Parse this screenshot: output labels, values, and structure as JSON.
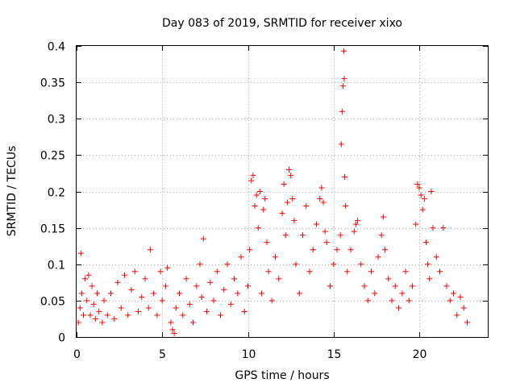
{
  "chart_data": {
    "type": "scatter",
    "title": "Day 083 of 2019, SRMTID for receiver xixo",
    "xlabel": "GPS time / hours",
    "ylabel": "SRMTID / TECUs",
    "xlim": [
      0,
      24
    ],
    "ylim": [
      0,
      0.4
    ],
    "x_ticks": [
      0,
      5,
      10,
      15,
      20
    ],
    "x_tick_labels": [
      "0",
      "5",
      "10",
      "15",
      "20"
    ],
    "y_ticks": [
      0,
      0.05,
      0.1,
      0.15,
      0.2,
      0.25,
      0.3,
      0.35,
      0.4
    ],
    "y_tick_labels": [
      "0",
      "0.05",
      "0.1",
      "0.15",
      "0.2",
      "0.25",
      "0.3",
      "0.35",
      "0.4"
    ],
    "grid": true,
    "marker": "+",
    "series": [
      {
        "name": "SRMTID",
        "color": "#ff0000",
        "points": [
          [
            0.1,
            0.02
          ],
          [
            0.2,
            0.04
          ],
          [
            0.25,
            0.115
          ],
          [
            0.3,
            0.06
          ],
          [
            0.4,
            0.03
          ],
          [
            0.5,
            0.08
          ],
          [
            0.6,
            0.05
          ],
          [
            0.7,
            0.085
          ],
          [
            0.8,
            0.03
          ],
          [
            0.9,
            0.07
          ],
          [
            1.0,
            0.045
          ],
          [
            1.1,
            0.025
          ],
          [
            1.2,
            0.06
          ],
          [
            1.3,
            0.035
          ],
          [
            1.5,
            0.02
          ],
          [
            1.6,
            0.05
          ],
          [
            1.8,
            0.03
          ],
          [
            2.0,
            0.06
          ],
          [
            2.2,
            0.025
          ],
          [
            2.4,
            0.075
          ],
          [
            2.6,
            0.04
          ],
          [
            2.8,
            0.085
          ],
          [
            3.0,
            0.03
          ],
          [
            3.2,
            0.065
          ],
          [
            3.4,
            0.09
          ],
          [
            3.6,
            0.035
          ],
          [
            3.8,
            0.055
          ],
          [
            4.0,
            0.08
          ],
          [
            4.2,
            0.04
          ],
          [
            4.3,
            0.12
          ],
          [
            4.5,
            0.06
          ],
          [
            4.7,
            0.03
          ],
          [
            4.9,
            0.09
          ],
          [
            5.0,
            0.05
          ],
          [
            5.2,
            0.07
          ],
          [
            5.3,
            0.095
          ],
          [
            5.5,
            0.02
          ],
          [
            5.6,
            0.01
          ],
          [
            5.7,
            0.005
          ],
          [
            5.8,
            0.04
          ],
          [
            6.0,
            0.06
          ],
          [
            6.2,
            0.03
          ],
          [
            6.4,
            0.08
          ],
          [
            6.6,
            0.045
          ],
          [
            6.8,
            0.02
          ],
          [
            7.0,
            0.07
          ],
          [
            7.2,
            0.1
          ],
          [
            7.3,
            0.055
          ],
          [
            7.4,
            0.135
          ],
          [
            7.6,
            0.035
          ],
          [
            7.8,
            0.075
          ],
          [
            8.0,
            0.05
          ],
          [
            8.2,
            0.09
          ],
          [
            8.4,
            0.03
          ],
          [
            8.6,
            0.065
          ],
          [
            8.8,
            0.1
          ],
          [
            9.0,
            0.045
          ],
          [
            9.2,
            0.08
          ],
          [
            9.4,
            0.06
          ],
          [
            9.6,
            0.11
          ],
          [
            9.8,
            0.035
          ],
          [
            10.0,
            0.07
          ],
          [
            10.1,
            0.12
          ],
          [
            10.2,
            0.215
          ],
          [
            10.3,
            0.222
          ],
          [
            10.4,
            0.18
          ],
          [
            10.5,
            0.195
          ],
          [
            10.6,
            0.15
          ],
          [
            10.7,
            0.2
          ],
          [
            10.8,
            0.06
          ],
          [
            10.9,
            0.175
          ],
          [
            11.0,
            0.19
          ],
          [
            11.1,
            0.13
          ],
          [
            11.2,
            0.09
          ],
          [
            11.4,
            0.05
          ],
          [
            11.6,
            0.11
          ],
          [
            11.8,
            0.08
          ],
          [
            12.0,
            0.17
          ],
          [
            12.1,
            0.21
          ],
          [
            12.2,
            0.14
          ],
          [
            12.3,
            0.185
          ],
          [
            12.4,
            0.23
          ],
          [
            12.5,
            0.222
          ],
          [
            12.6,
            0.19
          ],
          [
            12.7,
            0.16
          ],
          [
            12.8,
            0.1
          ],
          [
            13.0,
            0.06
          ],
          [
            13.2,
            0.14
          ],
          [
            13.4,
            0.18
          ],
          [
            13.6,
            0.09
          ],
          [
            13.8,
            0.12
          ],
          [
            14.0,
            0.155
          ],
          [
            14.2,
            0.19
          ],
          [
            14.3,
            0.205
          ],
          [
            14.4,
            0.185
          ],
          [
            14.5,
            0.145
          ],
          [
            14.6,
            0.13
          ],
          [
            14.8,
            0.07
          ],
          [
            15.0,
            0.1
          ],
          [
            15.2,
            0.12
          ],
          [
            15.4,
            0.14
          ],
          [
            15.45,
            0.265
          ],
          [
            15.5,
            0.31
          ],
          [
            15.55,
            0.345
          ],
          [
            15.6,
            0.393
          ],
          [
            15.62,
            0.355
          ],
          [
            15.65,
            0.22
          ],
          [
            15.7,
            0.18
          ],
          [
            15.8,
            0.09
          ],
          [
            16.0,
            0.12
          ],
          [
            16.2,
            0.145
          ],
          [
            16.3,
            0.155
          ],
          [
            16.4,
            0.16
          ],
          [
            16.6,
            0.1
          ],
          [
            16.8,
            0.07
          ],
          [
            17.0,
            0.05
          ],
          [
            17.2,
            0.09
          ],
          [
            17.4,
            0.06
          ],
          [
            17.6,
            0.11
          ],
          [
            17.8,
            0.14
          ],
          [
            17.9,
            0.165
          ],
          [
            18.0,
            0.12
          ],
          [
            18.2,
            0.08
          ],
          [
            18.4,
            0.05
          ],
          [
            18.6,
            0.07
          ],
          [
            18.8,
            0.04
          ],
          [
            19.0,
            0.06
          ],
          [
            19.2,
            0.09
          ],
          [
            19.4,
            0.05
          ],
          [
            19.6,
            0.07
          ],
          [
            19.8,
            0.155
          ],
          [
            19.9,
            0.21
          ],
          [
            20.0,
            0.205
          ],
          [
            20.1,
            0.195
          ],
          [
            20.2,
            0.175
          ],
          [
            20.3,
            0.19
          ],
          [
            20.4,
            0.13
          ],
          [
            20.5,
            0.1
          ],
          [
            20.6,
            0.08
          ],
          [
            20.7,
            0.2
          ],
          [
            20.8,
            0.15
          ],
          [
            21.0,
            0.11
          ],
          [
            21.2,
            0.09
          ],
          [
            21.4,
            0.15
          ],
          [
            21.6,
            0.07
          ],
          [
            21.8,
            0.05
          ],
          [
            22.0,
            0.06
          ],
          [
            22.2,
            0.03
          ],
          [
            22.4,
            0.055
          ],
          [
            22.6,
            0.04
          ],
          [
            22.8,
            0.02
          ]
        ]
      }
    ]
  }
}
